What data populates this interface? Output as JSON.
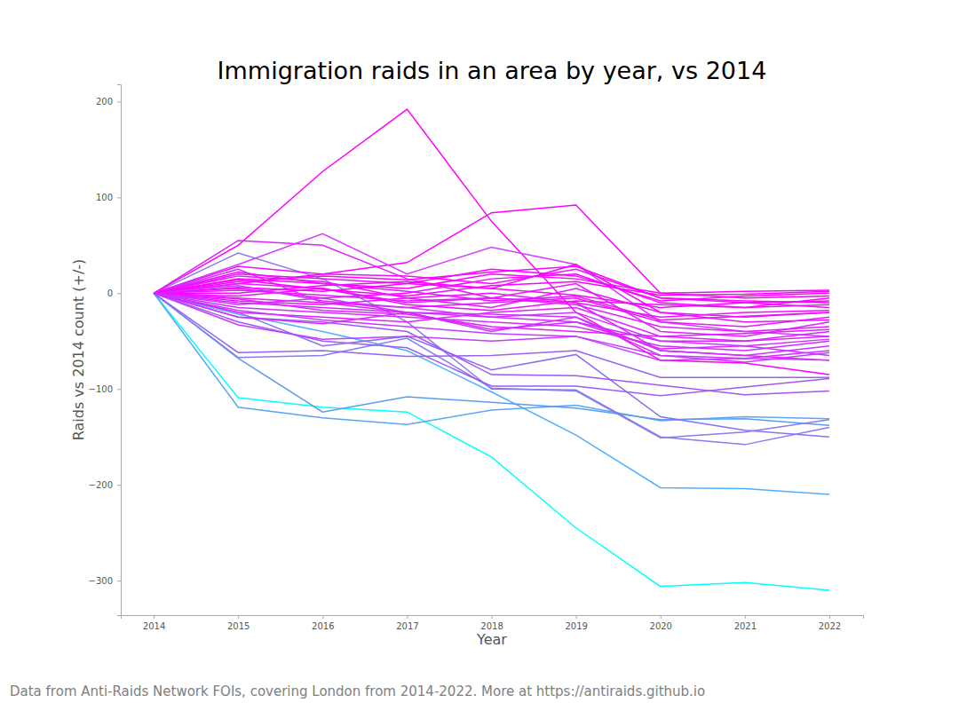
{
  "chart_data": {
    "type": "line",
    "title": "Immigration raids in an area by year, vs 2014",
    "x_label": "Year",
    "y_label": "Raids vs 2014 count (+/-)",
    "caption": "Data from Anti-Raids Network FOIs, covering London from 2014-2022. More at https://antiraids.github.io",
    "x": [
      2014,
      2015,
      2016,
      2017,
      2018,
      2019,
      2020,
      2021,
      2022
    ],
    "xlim": [
      2013.61,
      2022.4
    ],
    "xticks": [
      2014,
      2015,
      2016,
      2017,
      2018,
      2019,
      2020,
      2021,
      2022
    ],
    "ylim": [
      -336,
      218
    ],
    "yticks": [
      {
        "value": -300,
        "label": "−300"
      },
      {
        "value": -200,
        "label": "−200"
      },
      {
        "value": -100,
        "label": "−100"
      },
      0,
      100,
      200
    ],
    "grid": false,
    "series": [
      {
        "color": "#00ffff",
        "values": [
          0,
          -109,
          -119,
          -124,
          -171,
          -245,
          -306,
          -302,
          -310
        ]
      },
      {
        "color": "#51aeff",
        "values": [
          0,
          -22,
          -40,
          -60,
          -103,
          -148,
          -203,
          -204,
          -210
        ]
      },
      {
        "color": "#5aa5f5",
        "values": [
          0,
          -119,
          -130,
          -137,
          -122,
          -117,
          -133,
          -129,
          -131
        ]
      },
      {
        "color": "#5c9cf0",
        "values": [
          0,
          -68,
          -124,
          -108,
          -114,
          -120,
          -132,
          -131,
          -138
        ]
      },
      {
        "color": "#8a78f0",
        "values": [
          0,
          42,
          15,
          -30,
          -100,
          -101,
          -150,
          -158,
          -140
        ]
      },
      {
        "color": "#8c6ef2",
        "values": [
          0,
          -20,
          -55,
          -45,
          -80,
          -64,
          -129,
          -143,
          -150
        ]
      },
      {
        "color": "#8080f0",
        "values": [
          0,
          -67,
          -65,
          -47,
          -99,
          -102,
          -151,
          -145,
          -132
        ]
      },
      {
        "color": "#a05af5",
        "values": [
          0,
          -30,
          -50,
          -57,
          -97,
          -97,
          -107,
          -98,
          -89
        ]
      },
      {
        "color": "#9860f5",
        "values": [
          0,
          -62,
          -60,
          -66,
          -65,
          -60,
          -88,
          -88,
          -88
        ]
      },
      {
        "color": "#a555f8",
        "values": [
          0,
          -25,
          -30,
          -40,
          -85,
          -86,
          -96,
          -106,
          -102
        ]
      },
      {
        "color": "#c23dff",
        "values": [
          0,
          -33,
          -48,
          -45,
          -50,
          -45,
          -65,
          -72,
          -62
        ]
      },
      {
        "color": "#ff00ff",
        "values": [
          0,
          50,
          127,
          192,
          75,
          -20,
          -70,
          -73,
          -85
        ]
      },
      {
        "color": "#ff00ff",
        "values": [
          0,
          10,
          20,
          32,
          84,
          92,
          0,
          -5,
          -3
        ]
      },
      {
        "color": "#e020ff",
        "values": [
          0,
          55,
          50,
          15,
          -5,
          -10,
          -60,
          -65,
          -70
        ]
      },
      {
        "color": "#d53cff",
        "values": [
          0,
          30,
          62,
          20,
          48,
          30,
          -30,
          -40,
          -45
        ]
      },
      {
        "color": "#f00fff",
        "values": [
          0,
          28,
          20,
          18,
          10,
          25,
          -5,
          -10,
          -15
        ]
      },
      {
        "color": "#fc03ff",
        "values": [
          0,
          15,
          10,
          5,
          20,
          15,
          0,
          2,
          3
        ]
      },
      {
        "color": "#f50aff",
        "values": [
          0,
          5,
          -5,
          0,
          15,
          20,
          -10,
          -15,
          -5
        ]
      },
      {
        "color": "#f00fff",
        "values": [
          0,
          20,
          15,
          10,
          5,
          30,
          -20,
          -25,
          -20
        ]
      },
      {
        "color": "#e619ff",
        "values": [
          0,
          -5,
          -10,
          -15,
          -10,
          -5,
          -30,
          -35,
          -25
        ]
      },
      {
        "color": "#e21dff",
        "values": [
          0,
          10,
          5,
          -10,
          -5,
          10,
          -40,
          -45,
          -30
        ]
      },
      {
        "color": "#d628ff",
        "values": [
          0,
          -10,
          -15,
          -20,
          -25,
          -30,
          -50,
          -50,
          -45
        ]
      },
      {
        "color": "#f807ff",
        "values": [
          0,
          0,
          8,
          12,
          5,
          -2,
          -15,
          -10,
          -8
        ]
      },
      {
        "color": "#d32cff",
        "values": [
          0,
          -15,
          -20,
          -25,
          -30,
          -35,
          -55,
          -60,
          -50
        ]
      },
      {
        "color": "#d12eff",
        "values": [
          0,
          25,
          -10,
          -20,
          -40,
          -25,
          -60,
          -65,
          -55
        ]
      },
      {
        "color": "#ee11ff",
        "values": [
          0,
          -8,
          -12,
          -5,
          0,
          -10,
          -25,
          -20,
          -18
        ]
      },
      {
        "color": "#f609ff",
        "values": [
          0,
          12,
          18,
          14,
          22,
          28,
          -5,
          -8,
          -10
        ]
      },
      {
        "color": "#dd22ff",
        "values": [
          0,
          -20,
          -25,
          -30,
          -20,
          -15,
          -45,
          -50,
          -40
        ]
      },
      {
        "color": "#e21dff",
        "values": [
          0,
          3,
          -2,
          -8,
          -5,
          -12,
          -35,
          -40,
          -35
        ]
      },
      {
        "color": "#fc03ff",
        "values": [
          0,
          6,
          2,
          10,
          25,
          18,
          -8,
          -3,
          0
        ]
      },
      {
        "color": "#cd32ff",
        "values": [
          0,
          -12,
          -5,
          -20,
          -22,
          -25,
          -65,
          -68,
          -60
        ]
      },
      {
        "color": "#e916ff",
        "values": [
          0,
          18,
          12,
          -5,
          -15,
          5,
          -20,
          -30,
          -28
        ]
      },
      {
        "color": "#f20dff",
        "values": [
          0,
          -3,
          5,
          -12,
          -18,
          -8,
          -12,
          -15,
          -12
        ]
      },
      {
        "color": "#ca35ff",
        "values": [
          0,
          8,
          -8,
          -15,
          -25,
          -20,
          -50,
          -55,
          -65
        ]
      },
      {
        "color": "#c33cff",
        "values": [
          0,
          -18,
          -28,
          -35,
          -42,
          -45,
          -70,
          -68,
          -70
        ]
      },
      {
        "color": "#eb14ff",
        "values": [
          0,
          22,
          10,
          2,
          -8,
          -3,
          -28,
          -24,
          -20
        ]
      },
      {
        "color": "#de21ff",
        "values": [
          0,
          -6,
          -18,
          -22,
          -35,
          -40,
          -45,
          -42,
          -38
        ]
      },
      {
        "color": "#fc03ff",
        "values": [
          0,
          14,
          4,
          -3,
          8,
          12,
          -2,
          -1,
          2
        ]
      },
      {
        "color": "#d529ff",
        "values": [
          0,
          -25,
          -32,
          -20,
          -38,
          -30,
          -58,
          -55,
          -48
        ]
      }
    ]
  }
}
